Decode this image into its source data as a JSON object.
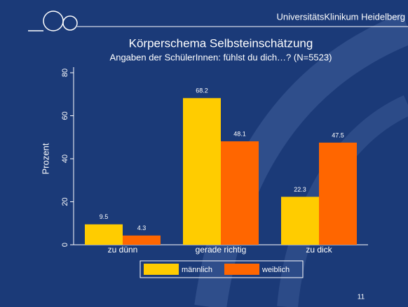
{
  "header": "UniversitätsKlinikum Heidelberg",
  "page_number": "11",
  "chart_data": {
    "type": "bar",
    "title": "Körperschema Selbsteinschätzung",
    "subtitle": "Angaben der SchülerInnen: fühlst du dich…?  (N=5523)",
    "y_label": "Prozent",
    "categories": [
      "zu dünn",
      "gerade richtig",
      "zu dick"
    ],
    "series": [
      {
        "name": "männlich",
        "color": "#ffcc00",
        "values": [
          9.5,
          68.2,
          22.3
        ]
      },
      {
        "name": "weiblich",
        "color": "#ff6600",
        "values": [
          4.3,
          48.1,
          47.5
        ]
      }
    ],
    "ylim": [
      0,
      80
    ],
    "yticks": [
      0,
      20,
      40,
      60,
      80
    ]
  }
}
